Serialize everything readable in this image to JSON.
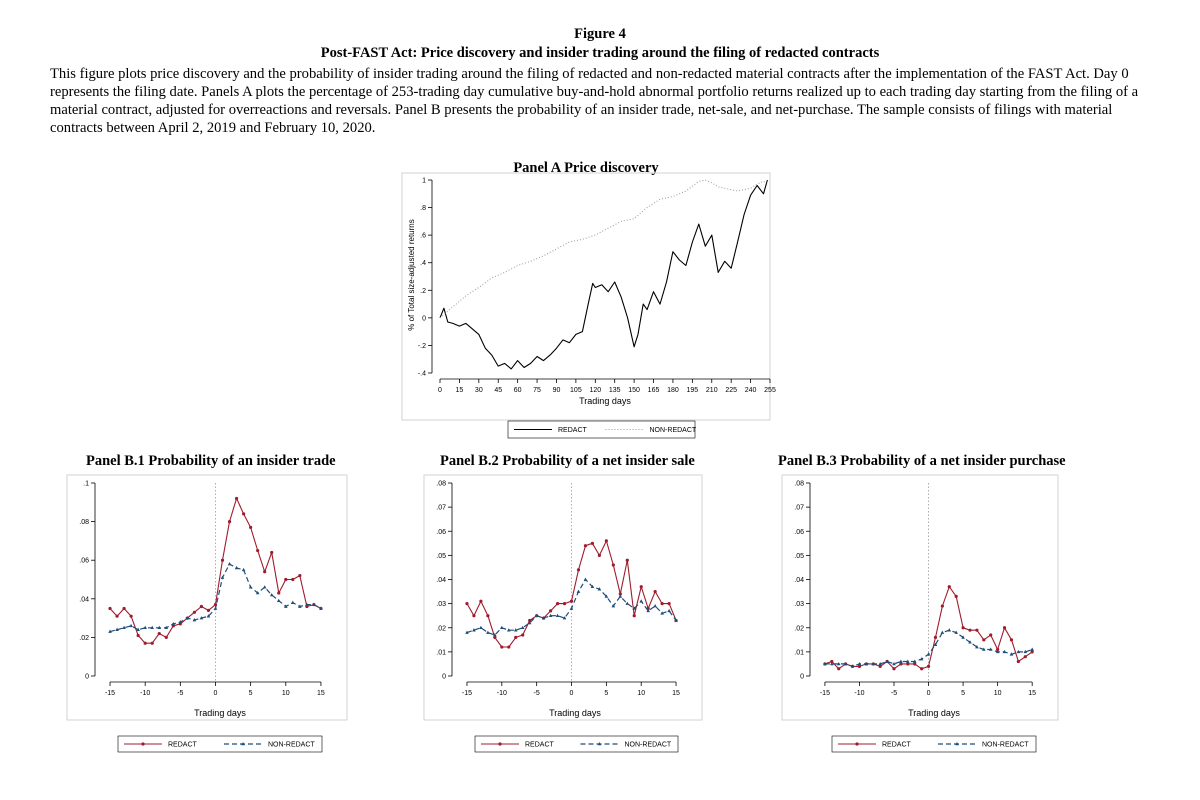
{
  "figure": {
    "label": "Figure 4",
    "title": "Post-FAST Act: Price discovery and insider trading around the filing of redacted contracts",
    "caption": "This figure plots price discovery and the probability of insider trading around the filing of redacted and non-redacted material contracts after the implementation of the FAST Act. Day 0 represents the filing date. Panels A plots the percentage of 253-trading day cumulative buy-and-hold abnormal portfolio returns realized up to each trading day starting from the filing of a material contract, adjusted for overreactions and reversals. Panel B presents the probability of an insider trade, net-sale, and net-purchase. The sample consists of filings with material contracts between April 2, 2019 and February 10, 2020."
  },
  "colors": {
    "redact_b": "#a01c2c",
    "nonredact_b": "#1f4e79",
    "axis": "#000000",
    "line_a": "#000000",
    "dotted_a": "#9a9a9a"
  },
  "chart_data": [
    {
      "id": "A",
      "title": "Panel A Price discovery",
      "type": "line",
      "xlabel": "Trading days",
      "ylabel": "% of Total size-adjusted returns",
      "xlim": [
        0,
        255
      ],
      "ylim": [
        -0.4,
        1.0
      ],
      "xticks": [
        0,
        15,
        30,
        45,
        60,
        75,
        90,
        105,
        120,
        135,
        150,
        165,
        180,
        195,
        210,
        225,
        240,
        255
      ],
      "xtick_labels": [
        "0",
        "15",
        "30",
        "45",
        "60",
        "75",
        "90",
        "105",
        "120",
        "135",
        "150",
        "165",
        "180",
        "195",
        "210",
        "225",
        "240",
        "255"
      ],
      "yticks": [
        -0.4,
        -0.2,
        0,
        0.2,
        0.4,
        0.6,
        0.8,
        1
      ],
      "ytick_labels": [
        "-.4",
        "-.2",
        "0",
        ".2",
        ".4",
        ".6",
        ".8",
        "1"
      ],
      "legend": [
        "REDACT",
        "NON-REDACT"
      ],
      "series": [
        {
          "name": "REDACT",
          "style": "solid",
          "x": [
            0,
            3,
            6,
            10,
            15,
            20,
            25,
            30,
            35,
            40,
            45,
            50,
            55,
            60,
            65,
            70,
            75,
            80,
            85,
            90,
            95,
            100,
            105,
            110,
            115,
            118,
            120,
            125,
            130,
            135,
            140,
            145,
            150,
            153,
            157,
            160,
            165,
            170,
            175,
            180,
            185,
            190,
            195,
            200,
            205,
            210,
            215,
            220,
            225,
            230,
            235,
            240,
            245,
            250,
            253
          ],
          "y": [
            0,
            0.07,
            -0.03,
            -0.04,
            -0.06,
            -0.04,
            -0.08,
            -0.12,
            -0.22,
            -0.27,
            -0.35,
            -0.33,
            -0.37,
            -0.31,
            -0.36,
            -0.33,
            -0.28,
            -0.31,
            -0.27,
            -0.22,
            -0.16,
            -0.18,
            -0.12,
            -0.1,
            0.12,
            0.25,
            0.22,
            0.24,
            0.19,
            0.26,
            0.15,
            0.0,
            -0.21,
            -0.12,
            0.1,
            0.06,
            0.19,
            0.1,
            0.26,
            0.48,
            0.42,
            0.38,
            0.55,
            0.68,
            0.52,
            0.6,
            0.33,
            0.41,
            0.36,
            0.55,
            0.75,
            0.89,
            0.96,
            0.9,
            1.0
          ]
        },
        {
          "name": "NON-REDACT",
          "style": "dotted",
          "x": [
            0,
            10,
            20,
            30,
            40,
            50,
            60,
            70,
            80,
            90,
            100,
            110,
            120,
            130,
            140,
            150,
            160,
            170,
            180,
            190,
            200,
            205,
            210,
            215,
            220,
            230,
            240,
            245,
            250,
            253
          ],
          "y": [
            0,
            0.08,
            0.16,
            0.22,
            0.29,
            0.33,
            0.38,
            0.41,
            0.45,
            0.5,
            0.55,
            0.57,
            0.6,
            0.65,
            0.7,
            0.72,
            0.8,
            0.86,
            0.88,
            0.92,
            0.99,
            1.0,
            0.98,
            0.95,
            0.94,
            0.92,
            0.94,
            0.97,
            0.99,
            0.98
          ]
        }
      ]
    },
    {
      "id": "B1",
      "title": "Panel B.1 Probability of an insider trade",
      "type": "line",
      "xlabel": "Trading days",
      "xlim": [
        -16,
        17
      ],
      "ylim": [
        0,
        0.1
      ],
      "vline": 0,
      "xticks": [
        -15,
        -10,
        -5,
        0,
        5,
        10,
        15
      ],
      "xtick_labels": [
        "-15",
        "-10",
        "-5",
        "0",
        "5",
        "10",
        "15"
      ],
      "yticks": [
        0,
        0.02,
        0.04,
        0.06,
        0.08,
        0.1
      ],
      "ytick_labels": [
        "0",
        ".02",
        ".04",
        ".06",
        ".08",
        ".1"
      ],
      "legend": [
        "REDACT",
        "NON-REDACT"
      ],
      "series": [
        {
          "name": "REDACT",
          "x": [
            -15,
            -14,
            -13,
            -12,
            -11,
            -10,
            -9,
            -8,
            -7,
            -6,
            -5,
            -4,
            -3,
            -2,
            -1,
            0,
            1,
            2,
            3,
            4,
            5,
            6,
            7,
            8,
            9,
            10,
            11,
            12,
            13,
            14,
            15
          ],
          "y": [
            0.035,
            0.031,
            0.035,
            0.031,
            0.021,
            0.017,
            0.017,
            0.022,
            0.02,
            0.026,
            0.027,
            0.03,
            0.033,
            0.036,
            0.034,
            0.037,
            0.06,
            0.08,
            0.092,
            0.084,
            0.077,
            0.065,
            0.054,
            0.064,
            0.043,
            0.05,
            0.05,
            0.052,
            0.036,
            0.037,
            0.035
          ]
        },
        {
          "name": "NON-REDACT",
          "x": [
            -15,
            -14,
            -13,
            -12,
            -11,
            -10,
            -9,
            -8,
            -7,
            -6,
            -5,
            -4,
            -3,
            -2,
            -1,
            0,
            1,
            2,
            3,
            4,
            5,
            6,
            7,
            8,
            9,
            10,
            11,
            12,
            13,
            14,
            15
          ],
          "y": [
            0.023,
            0.024,
            0.025,
            0.026,
            0.024,
            0.025,
            0.025,
            0.025,
            0.025,
            0.027,
            0.028,
            0.03,
            0.029,
            0.03,
            0.031,
            0.035,
            0.051,
            0.058,
            0.056,
            0.055,
            0.046,
            0.043,
            0.046,
            0.042,
            0.039,
            0.036,
            0.038,
            0.036,
            0.037,
            0.037,
            0.035
          ]
        }
      ]
    },
    {
      "id": "B2",
      "title": "Panel B.2 Probability of a net insider sale",
      "type": "line",
      "xlabel": "Trading days",
      "xlim": [
        -16,
        17
      ],
      "ylim": [
        0,
        0.08
      ],
      "vline": 0,
      "xticks": [
        -15,
        -10,
        -5,
        0,
        5,
        10,
        15
      ],
      "xtick_labels": [
        "-15",
        "-10",
        "-5",
        "0",
        "5",
        "10",
        "15"
      ],
      "yticks": [
        0,
        0.01,
        0.02,
        0.03,
        0.04,
        0.05,
        0.06,
        0.07,
        0.08
      ],
      "ytick_labels": [
        "0",
        ".01",
        ".02",
        ".03",
        ".04",
        ".05",
        ".06",
        ".07",
        ".08"
      ],
      "legend": [
        "REDACT",
        "NON-REDACT"
      ],
      "series": [
        {
          "name": "REDACT",
          "x": [
            -15,
            -14,
            -13,
            -12,
            -11,
            -10,
            -9,
            -8,
            -7,
            -6,
            -5,
            -4,
            -3,
            -2,
            -1,
            0,
            1,
            2,
            3,
            4,
            5,
            6,
            7,
            8,
            9,
            10,
            11,
            12,
            13,
            14,
            15
          ],
          "y": [
            0.03,
            0.025,
            0.031,
            0.025,
            0.016,
            0.012,
            0.012,
            0.016,
            0.017,
            0.023,
            0.025,
            0.024,
            0.027,
            0.03,
            0.03,
            0.031,
            0.044,
            0.054,
            0.055,
            0.05,
            0.056,
            0.046,
            0.034,
            0.048,
            0.025,
            0.037,
            0.028,
            0.035,
            0.03,
            0.03,
            0.023
          ]
        },
        {
          "name": "NON-REDACT",
          "x": [
            -15,
            -14,
            -13,
            -12,
            -11,
            -10,
            -9,
            -8,
            -7,
            -6,
            -5,
            -4,
            -3,
            -2,
            -1,
            0,
            1,
            2,
            3,
            4,
            5,
            6,
            7,
            8,
            9,
            10,
            11,
            12,
            13,
            14,
            15
          ],
          "y": [
            0.018,
            0.019,
            0.02,
            0.018,
            0.017,
            0.02,
            0.019,
            0.019,
            0.02,
            0.022,
            0.025,
            0.024,
            0.025,
            0.025,
            0.024,
            0.028,
            0.035,
            0.04,
            0.037,
            0.036,
            0.033,
            0.029,
            0.033,
            0.03,
            0.028,
            0.031,
            0.027,
            0.029,
            0.026,
            0.027,
            0.023
          ]
        }
      ]
    },
    {
      "id": "B3",
      "title": "Panel B.3 Probability of a net insider purchase",
      "type": "line",
      "xlabel": "Trading days",
      "xlim": [
        -16,
        17
      ],
      "ylim": [
        0,
        0.08
      ],
      "vline": 0,
      "xticks": [
        -15,
        -10,
        -5,
        0,
        5,
        10,
        15
      ],
      "xtick_labels": [
        "-15",
        "-10",
        "-5",
        "0",
        "5",
        "10",
        "15"
      ],
      "yticks": [
        0,
        0.01,
        0.02,
        0.03,
        0.04,
        0.05,
        0.06,
        0.07,
        0.08
      ],
      "ytick_labels": [
        "0",
        ".01",
        ".02",
        ".03",
        ".04",
        ".05",
        ".06",
        ".07",
        ".08"
      ],
      "legend": [
        "REDACT",
        "NON-REDACT"
      ],
      "series": [
        {
          "name": "REDACT",
          "x": [
            -15,
            -14,
            -13,
            -12,
            -11,
            -10,
            -9,
            -8,
            -7,
            -6,
            -5,
            -4,
            -3,
            -2,
            -1,
            0,
            1,
            2,
            3,
            4,
            5,
            6,
            7,
            8,
            9,
            10,
            11,
            12,
            13,
            14,
            15
          ],
          "y": [
            0.005,
            0.006,
            0.003,
            0.005,
            0.004,
            0.004,
            0.005,
            0.005,
            0.004,
            0.006,
            0.003,
            0.005,
            0.005,
            0.005,
            0.003,
            0.004,
            0.016,
            0.029,
            0.037,
            0.033,
            0.02,
            0.019,
            0.019,
            0.015,
            0.017,
            0.011,
            0.02,
            0.015,
            0.006,
            0.008,
            0.01
          ]
        },
        {
          "name": "NON-REDACT",
          "x": [
            -15,
            -14,
            -13,
            -12,
            -11,
            -10,
            -9,
            -8,
            -7,
            -6,
            -5,
            -4,
            -3,
            -2,
            -1,
            0,
            1,
            2,
            3,
            4,
            5,
            6,
            7,
            8,
            9,
            10,
            11,
            12,
            13,
            14,
            15
          ],
          "y": [
            0.005,
            0.005,
            0.005,
            0.005,
            0.004,
            0.005,
            0.005,
            0.005,
            0.005,
            0.006,
            0.005,
            0.006,
            0.006,
            0.006,
            0.007,
            0.009,
            0.013,
            0.018,
            0.019,
            0.018,
            0.016,
            0.014,
            0.012,
            0.011,
            0.011,
            0.01,
            0.01,
            0.009,
            0.01,
            0.01,
            0.011
          ]
        }
      ]
    }
  ]
}
